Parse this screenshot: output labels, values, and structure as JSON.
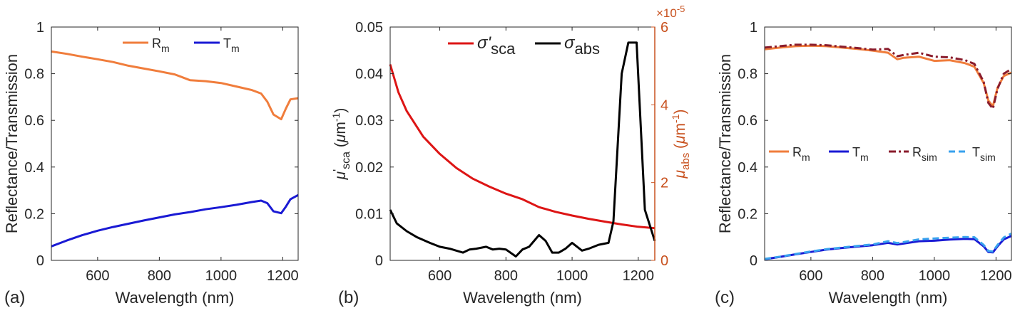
{
  "chart_data": [
    {
      "panel_label": "(a)",
      "type": "line",
      "xlabel": "Wavelength (nm)",
      "ylabel": "Reflectance/Transmission",
      "xlim": [
        450,
        1250
      ],
      "ylim": [
        0,
        1
      ],
      "xticks": [
        "600",
        "800",
        "1000",
        "1200"
      ],
      "yticks": [
        "0",
        "0.2",
        "0.4",
        "0.6",
        "0.8",
        "1"
      ],
      "legend": {
        "position": "top-center",
        "orientation": "horizontal"
      },
      "series": [
        {
          "name": "R",
          "sub": "m",
          "color": "#f07d3c",
          "dash": "solid",
          "x": [
            450,
            500,
            550,
            600,
            650,
            700,
            750,
            800,
            850,
            900,
            950,
            1000,
            1050,
            1100,
            1130,
            1150,
            1170,
            1195,
            1210,
            1225,
            1250
          ],
          "y": [
            0.895,
            0.885,
            0.873,
            0.862,
            0.85,
            0.834,
            0.822,
            0.81,
            0.797,
            0.772,
            0.768,
            0.76,
            0.745,
            0.73,
            0.715,
            0.68,
            0.625,
            0.605,
            0.65,
            0.69,
            0.695
          ]
        },
        {
          "name": "T",
          "sub": "m",
          "color": "#1a1ad4",
          "dash": "solid",
          "x": [
            450,
            500,
            550,
            600,
            650,
            700,
            750,
            800,
            850,
            900,
            950,
            1000,
            1050,
            1100,
            1130,
            1150,
            1170,
            1195,
            1210,
            1225,
            1250
          ],
          "y": [
            0.06,
            0.085,
            0.108,
            0.127,
            0.143,
            0.157,
            0.171,
            0.184,
            0.197,
            0.207,
            0.219,
            0.228,
            0.238,
            0.25,
            0.256,
            0.245,
            0.21,
            0.202,
            0.23,
            0.262,
            0.28
          ]
        }
      ]
    },
    {
      "panel_label": "(b)",
      "type": "line",
      "xlabel": "Wavelength (nm)",
      "ylabel_left": "μ'sca (μm-1)",
      "ylabel_right": "μabs (μm-1)",
      "right_axis_color": "#c8511e",
      "right_axis_exponent": "×10-5",
      "xlim": [
        450,
        1250
      ],
      "ylim_left": [
        0,
        0.05
      ],
      "ylim_right": [
        0,
        6
      ],
      "xticks": [
        "600",
        "800",
        "1000",
        "1200"
      ],
      "yticks_left": [
        "0",
        "0.01",
        "0.02",
        "0.03",
        "0.04",
        "0.05"
      ],
      "yticks_right": [
        "0",
        "2",
        "4",
        "6"
      ],
      "legend": {
        "position": "top-center",
        "orientation": "horizontal"
      },
      "series": [
        {
          "name": "σ'",
          "sub": "sca",
          "axis": "left",
          "color": "#dd1515",
          "dash": "solid",
          "x": [
            450,
            475,
            500,
            550,
            600,
            650,
            700,
            750,
            800,
            850,
            900,
            950,
            1000,
            1050,
            1100,
            1150,
            1200,
            1250
          ],
          "y": [
            0.042,
            0.036,
            0.032,
            0.0265,
            0.0228,
            0.0198,
            0.0175,
            0.0158,
            0.0143,
            0.0131,
            0.0114,
            0.0104,
            0.0096,
            0.0089,
            0.0083,
            0.0077,
            0.0072,
            0.0069
          ]
        },
        {
          "name": "σ",
          "sub": "abs",
          "axis": "right",
          "color": "#000000",
          "dash": "solid",
          "x": [
            450,
            470,
            500,
            530,
            570,
            600,
            630,
            670,
            690,
            710,
            740,
            760,
            780,
            800,
            830,
            850,
            870,
            900,
            920,
            940,
            960,
            980,
            1000,
            1030,
            1050,
            1080,
            1110,
            1125,
            1150,
            1170,
            1195,
            1220,
            1250
          ],
          "y": [
            1.3,
            0.95,
            0.75,
            0.6,
            0.45,
            0.35,
            0.3,
            0.2,
            0.28,
            0.3,
            0.35,
            0.28,
            0.3,
            0.28,
            0.1,
            0.28,
            0.35,
            0.65,
            0.5,
            0.2,
            0.2,
            0.3,
            0.45,
            0.25,
            0.3,
            0.4,
            0.45,
            1.0,
            4.8,
            5.6,
            5.6,
            1.3,
            0.5
          ]
        }
      ]
    },
    {
      "panel_label": "(c)",
      "type": "line",
      "xlabel": "Wavelength (nm)",
      "ylabel": "Reflectance/Transmission",
      "xlim": [
        450,
        1250
      ],
      "ylim": [
        0,
        1
      ],
      "xticks": [
        "600",
        "800",
        "1000",
        "1200"
      ],
      "yticks": [
        "0",
        "0.2",
        "0.4",
        "0.6",
        "0.8",
        "1"
      ],
      "legend": {
        "position": "middle-center",
        "orientation": "horizontal"
      },
      "series": [
        {
          "name": "R",
          "sub": "m",
          "color": "#f07d3c",
          "dash": "solid",
          "x": [
            450,
            500,
            550,
            600,
            650,
            700,
            750,
            800,
            850,
            880,
            900,
            950,
            1000,
            1050,
            1100,
            1130,
            1160,
            1175,
            1190,
            1205,
            1225,
            1250
          ],
          "y": [
            0.905,
            0.912,
            0.918,
            0.92,
            0.918,
            0.912,
            0.906,
            0.899,
            0.89,
            0.862,
            0.868,
            0.873,
            0.855,
            0.858,
            0.845,
            0.83,
            0.76,
            0.685,
            0.66,
            0.74,
            0.79,
            0.805
          ]
        },
        {
          "name": "T",
          "sub": "m",
          "color": "#1a1ad4",
          "dash": "solid",
          "x": [
            450,
            500,
            550,
            600,
            650,
            700,
            750,
            800,
            850,
            880,
            900,
            950,
            1000,
            1050,
            1100,
            1130,
            1160,
            1175,
            1190,
            1205,
            1225,
            1250
          ],
          "y": [
            0.005,
            0.015,
            0.026,
            0.036,
            0.046,
            0.053,
            0.059,
            0.065,
            0.075,
            0.068,
            0.072,
            0.082,
            0.084,
            0.089,
            0.092,
            0.091,
            0.06,
            0.036,
            0.034,
            0.06,
            0.09,
            0.105
          ]
        },
        {
          "name": "R",
          "sub": "sim",
          "color": "#8a1c2c",
          "dash": "dashdot",
          "x": [
            450,
            500,
            550,
            600,
            650,
            700,
            750,
            800,
            850,
            880,
            900,
            950,
            1000,
            1050,
            1100,
            1130,
            1160,
            1175,
            1190,
            1205,
            1225,
            1250
          ],
          "y": [
            0.912,
            0.918,
            0.924,
            0.924,
            0.922,
            0.916,
            0.91,
            0.903,
            0.906,
            0.875,
            0.88,
            0.89,
            0.873,
            0.87,
            0.858,
            0.842,
            0.765,
            0.675,
            0.65,
            0.735,
            0.8,
            0.82
          ]
        },
        {
          "name": "T",
          "sub": "sim",
          "color": "#38a2ee",
          "dash": "dashed",
          "x": [
            450,
            500,
            550,
            600,
            650,
            700,
            750,
            800,
            850,
            880,
            900,
            950,
            1000,
            1050,
            1100,
            1130,
            1160,
            1175,
            1190,
            1205,
            1225,
            1250
          ],
          "y": [
            0.006,
            0.016,
            0.027,
            0.038,
            0.048,
            0.055,
            0.062,
            0.068,
            0.082,
            0.074,
            0.078,
            0.09,
            0.094,
            0.097,
            0.1,
            0.099,
            0.066,
            0.04,
            0.038,
            0.066,
            0.098,
            0.115
          ]
        }
      ]
    }
  ]
}
